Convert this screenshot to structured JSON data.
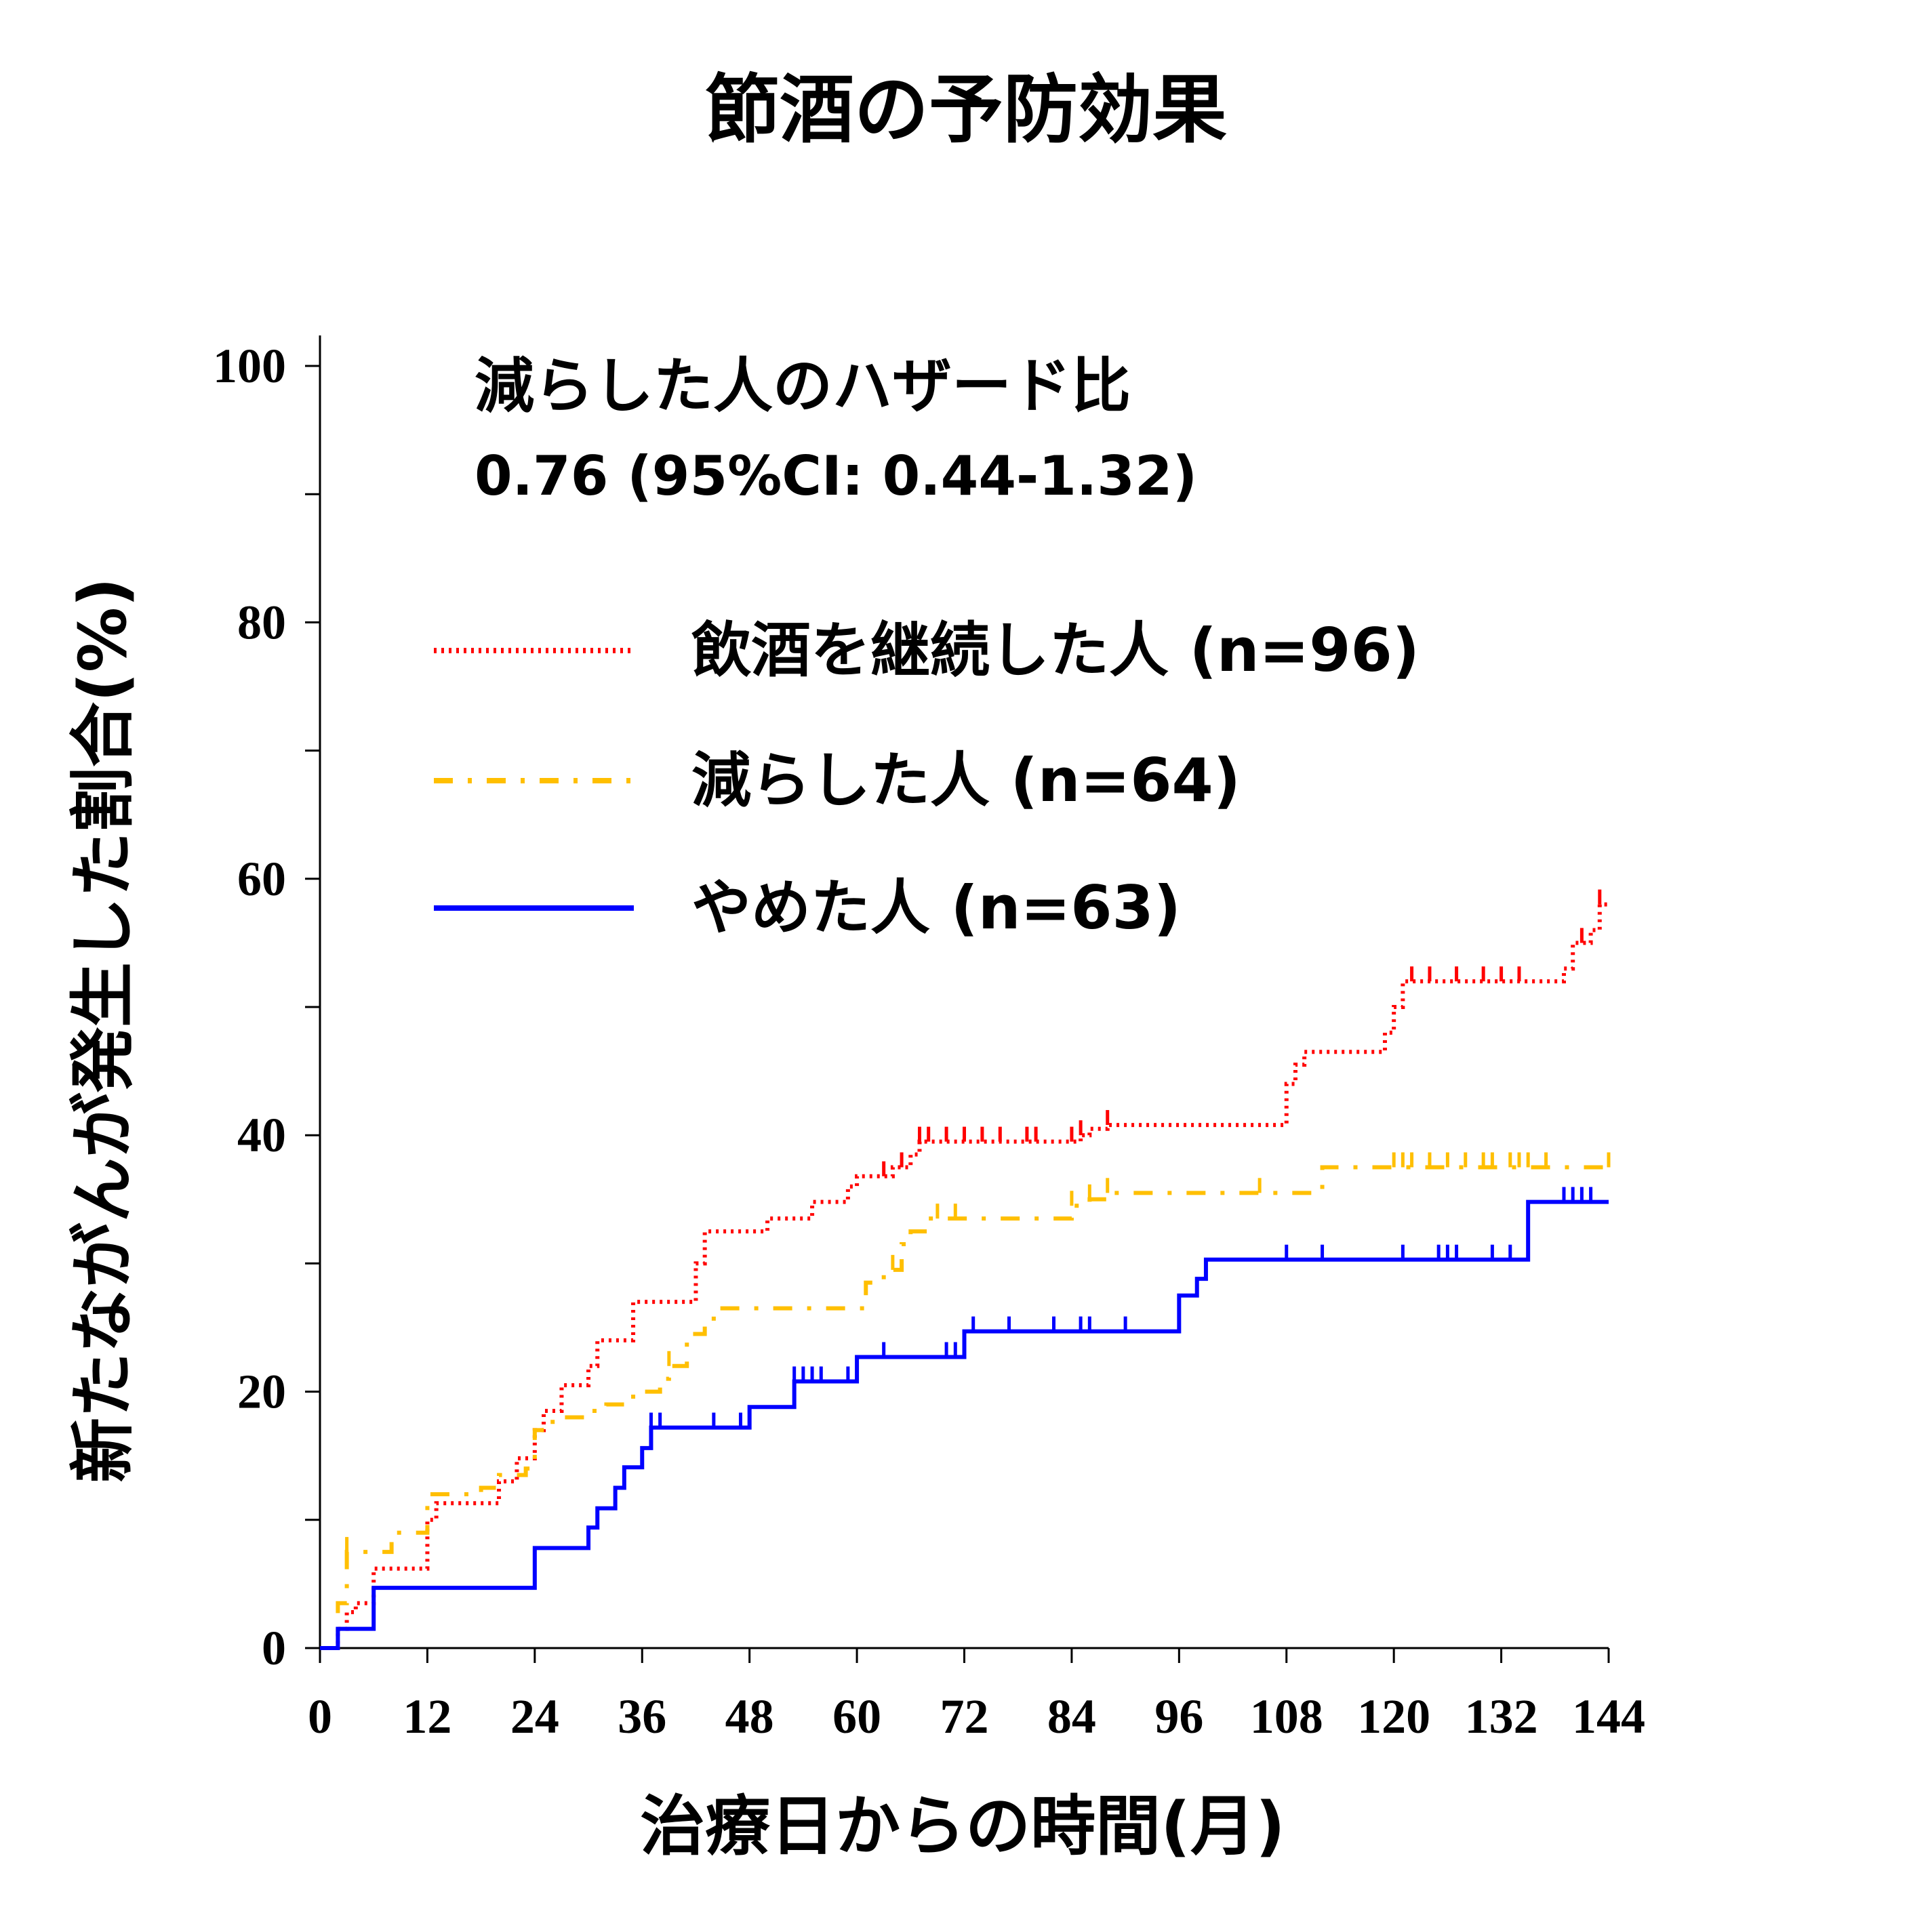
{
  "colors": {
    "continued": "#ff0000",
    "reduced": "#ffbf00",
    "quit": "#0000ff",
    "axis": "#000000"
  },
  "chart_data": {
    "type": "line",
    "subtype": "kaplan-meier cumulative incidence",
    "title": "節酒の予防効果",
    "xlabel": "治療日からの時間(月)",
    "ylabel": "新たながんが発生した割合(%)",
    "xlim": [
      0,
      144
    ],
    "ylim": [
      0,
      100
    ],
    "x_ticks": [
      "0",
      "12",
      "24",
      "36",
      "48",
      "60",
      "72",
      "84",
      "96",
      "108",
      "120",
      "132",
      "144"
    ],
    "y_ticks": [
      "0",
      "20",
      "40",
      "60",
      "80",
      "100"
    ],
    "grid": false,
    "legend_position": "upper-left",
    "annotation": {
      "line1": "減らした人のハザード比",
      "line2": "0.76 (95%CI: 0.44-1.32)"
    },
    "series": [
      {
        "name": "飲酒を継続した人 (n=96)",
        "color_key": "continued",
        "line_style": "dotted",
        "x": [
          0,
          2,
          3,
          4,
          6,
          8,
          12,
          13,
          18,
          20,
          22,
          24,
          25,
          27,
          30,
          31,
          34,
          35,
          38,
          42,
          43,
          44,
          50,
          52,
          55,
          57,
          59,
          60,
          64,
          66,
          67,
          69,
          85,
          86,
          88,
          107,
          108,
          109,
          110,
          112,
          119,
          120,
          121,
          122,
          139,
          140,
          141,
          142,
          143,
          144
        ],
        "y": [
          0,
          1.5,
          2.8,
          3.5,
          6.2,
          6.2,
          10.0,
          11.3,
          11.3,
          13.0,
          14.8,
          17.0,
          18.5,
          20.5,
          22.0,
          24.0,
          24.0,
          27.0,
          27.0,
          30.0,
          32.5,
          32.5,
          33.5,
          33.5,
          34.8,
          34.8,
          36.0,
          36.8,
          37.5,
          38.5,
          39.5,
          39.5,
          40.0,
          40.5,
          40.8,
          40.8,
          44.0,
          45.5,
          46.5,
          46.5,
          48.0,
          50.0,
          52.0,
          52.0,
          53.0,
          55.0,
          55.0,
          56.0,
          58.0,
          58.0
        ]
      },
      {
        "name": "減らした人 (n=64)",
        "color_key": "reduced",
        "line_style": "dash-dot",
        "x": [
          0,
          2,
          3,
          8,
          12,
          18,
          20,
          23,
          24,
          26,
          30,
          32,
          35,
          38,
          39,
          41,
          43,
          44,
          59,
          61,
          63,
          65,
          66,
          68,
          82,
          84,
          86,
          88,
          107,
          112,
          113,
          144
        ],
        "y": [
          0,
          3.5,
          7.5,
          9.0,
          12.0,
          12.5,
          13.5,
          14.0,
          17.0,
          18.0,
          18.5,
          19.0,
          20.0,
          21.0,
          22.0,
          24.5,
          25.5,
          26.5,
          26.5,
          28.5,
          29.5,
          31.5,
          32.5,
          33.5,
          33.5,
          34.5,
          35.0,
          35.5,
          35.5,
          37.5,
          37.5,
          37.5
        ]
      },
      {
        "name": "やめた人 (n=63)",
        "color_key": "quit",
        "line_style": "solid",
        "x": [
          0,
          2,
          6,
          23,
          24,
          30,
          31,
          33,
          34,
          36,
          37,
          38,
          48,
          53,
          60,
          72,
          96,
          98,
          99,
          135,
          144
        ],
        "y": [
          0,
          1.5,
          4.7,
          4.7,
          7.8,
          9.4,
          10.9,
          12.5,
          14.1,
          15.6,
          17.2,
          17.2,
          18.8,
          20.8,
          22.7,
          24.7,
          27.5,
          28.8,
          30.3,
          34.8,
          34.8
        ]
      }
    ],
    "censor_marks": {
      "continued": [
        63,
        65,
        67,
        68,
        70,
        72,
        74,
        76,
        79,
        80,
        84,
        85,
        88,
        122,
        124,
        127,
        130,
        132,
        134,
        141,
        143
      ],
      "reduced": [
        3,
        39,
        64,
        69,
        71,
        84,
        86,
        88,
        105,
        120,
        121,
        122,
        124,
        126,
        128,
        130,
        131,
        133,
        134,
        135,
        137,
        144
      ],
      "quit": [
        37,
        38,
        44,
        47,
        53,
        54,
        55,
        56,
        59,
        63,
        70,
        71,
        73,
        77,
        82,
        85,
        86,
        90,
        108,
        112,
        121,
        125,
        126,
        127,
        131,
        133,
        139,
        140,
        141,
        142
      ]
    }
  }
}
